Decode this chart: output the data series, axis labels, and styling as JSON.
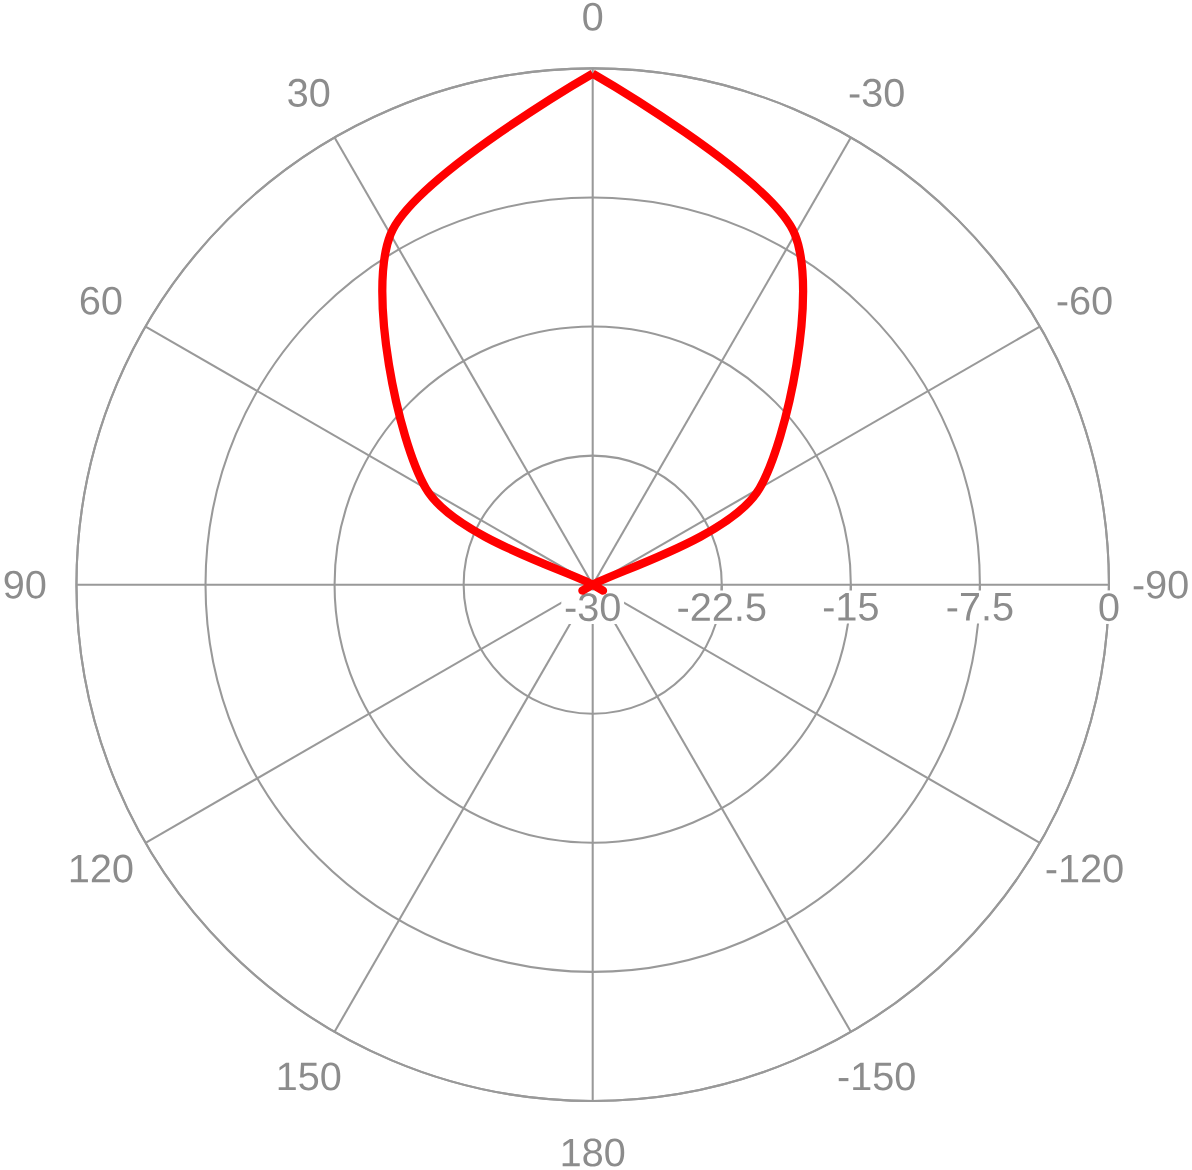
{
  "chart_data": {
    "type": "radar",
    "categories": [
      "0",
      "-30",
      "-60",
      "-90",
      "-120",
      "-150",
      "180",
      "150",
      "120",
      "90",
      "60",
      "30"
    ],
    "series": [
      {
        "color": "#ff0000",
        "values": [
          -0.3,
          -6.5,
          -18.8,
          -30,
          -30,
          -30,
          -30,
          -30,
          -30,
          -30,
          -18.8,
          -6.5
        ]
      }
    ],
    "ylim": [
      -30,
      0
    ],
    "yticks": [
      -30,
      -22.5,
      -15,
      -7.5,
      0
    ],
    "grid": true
  }
}
